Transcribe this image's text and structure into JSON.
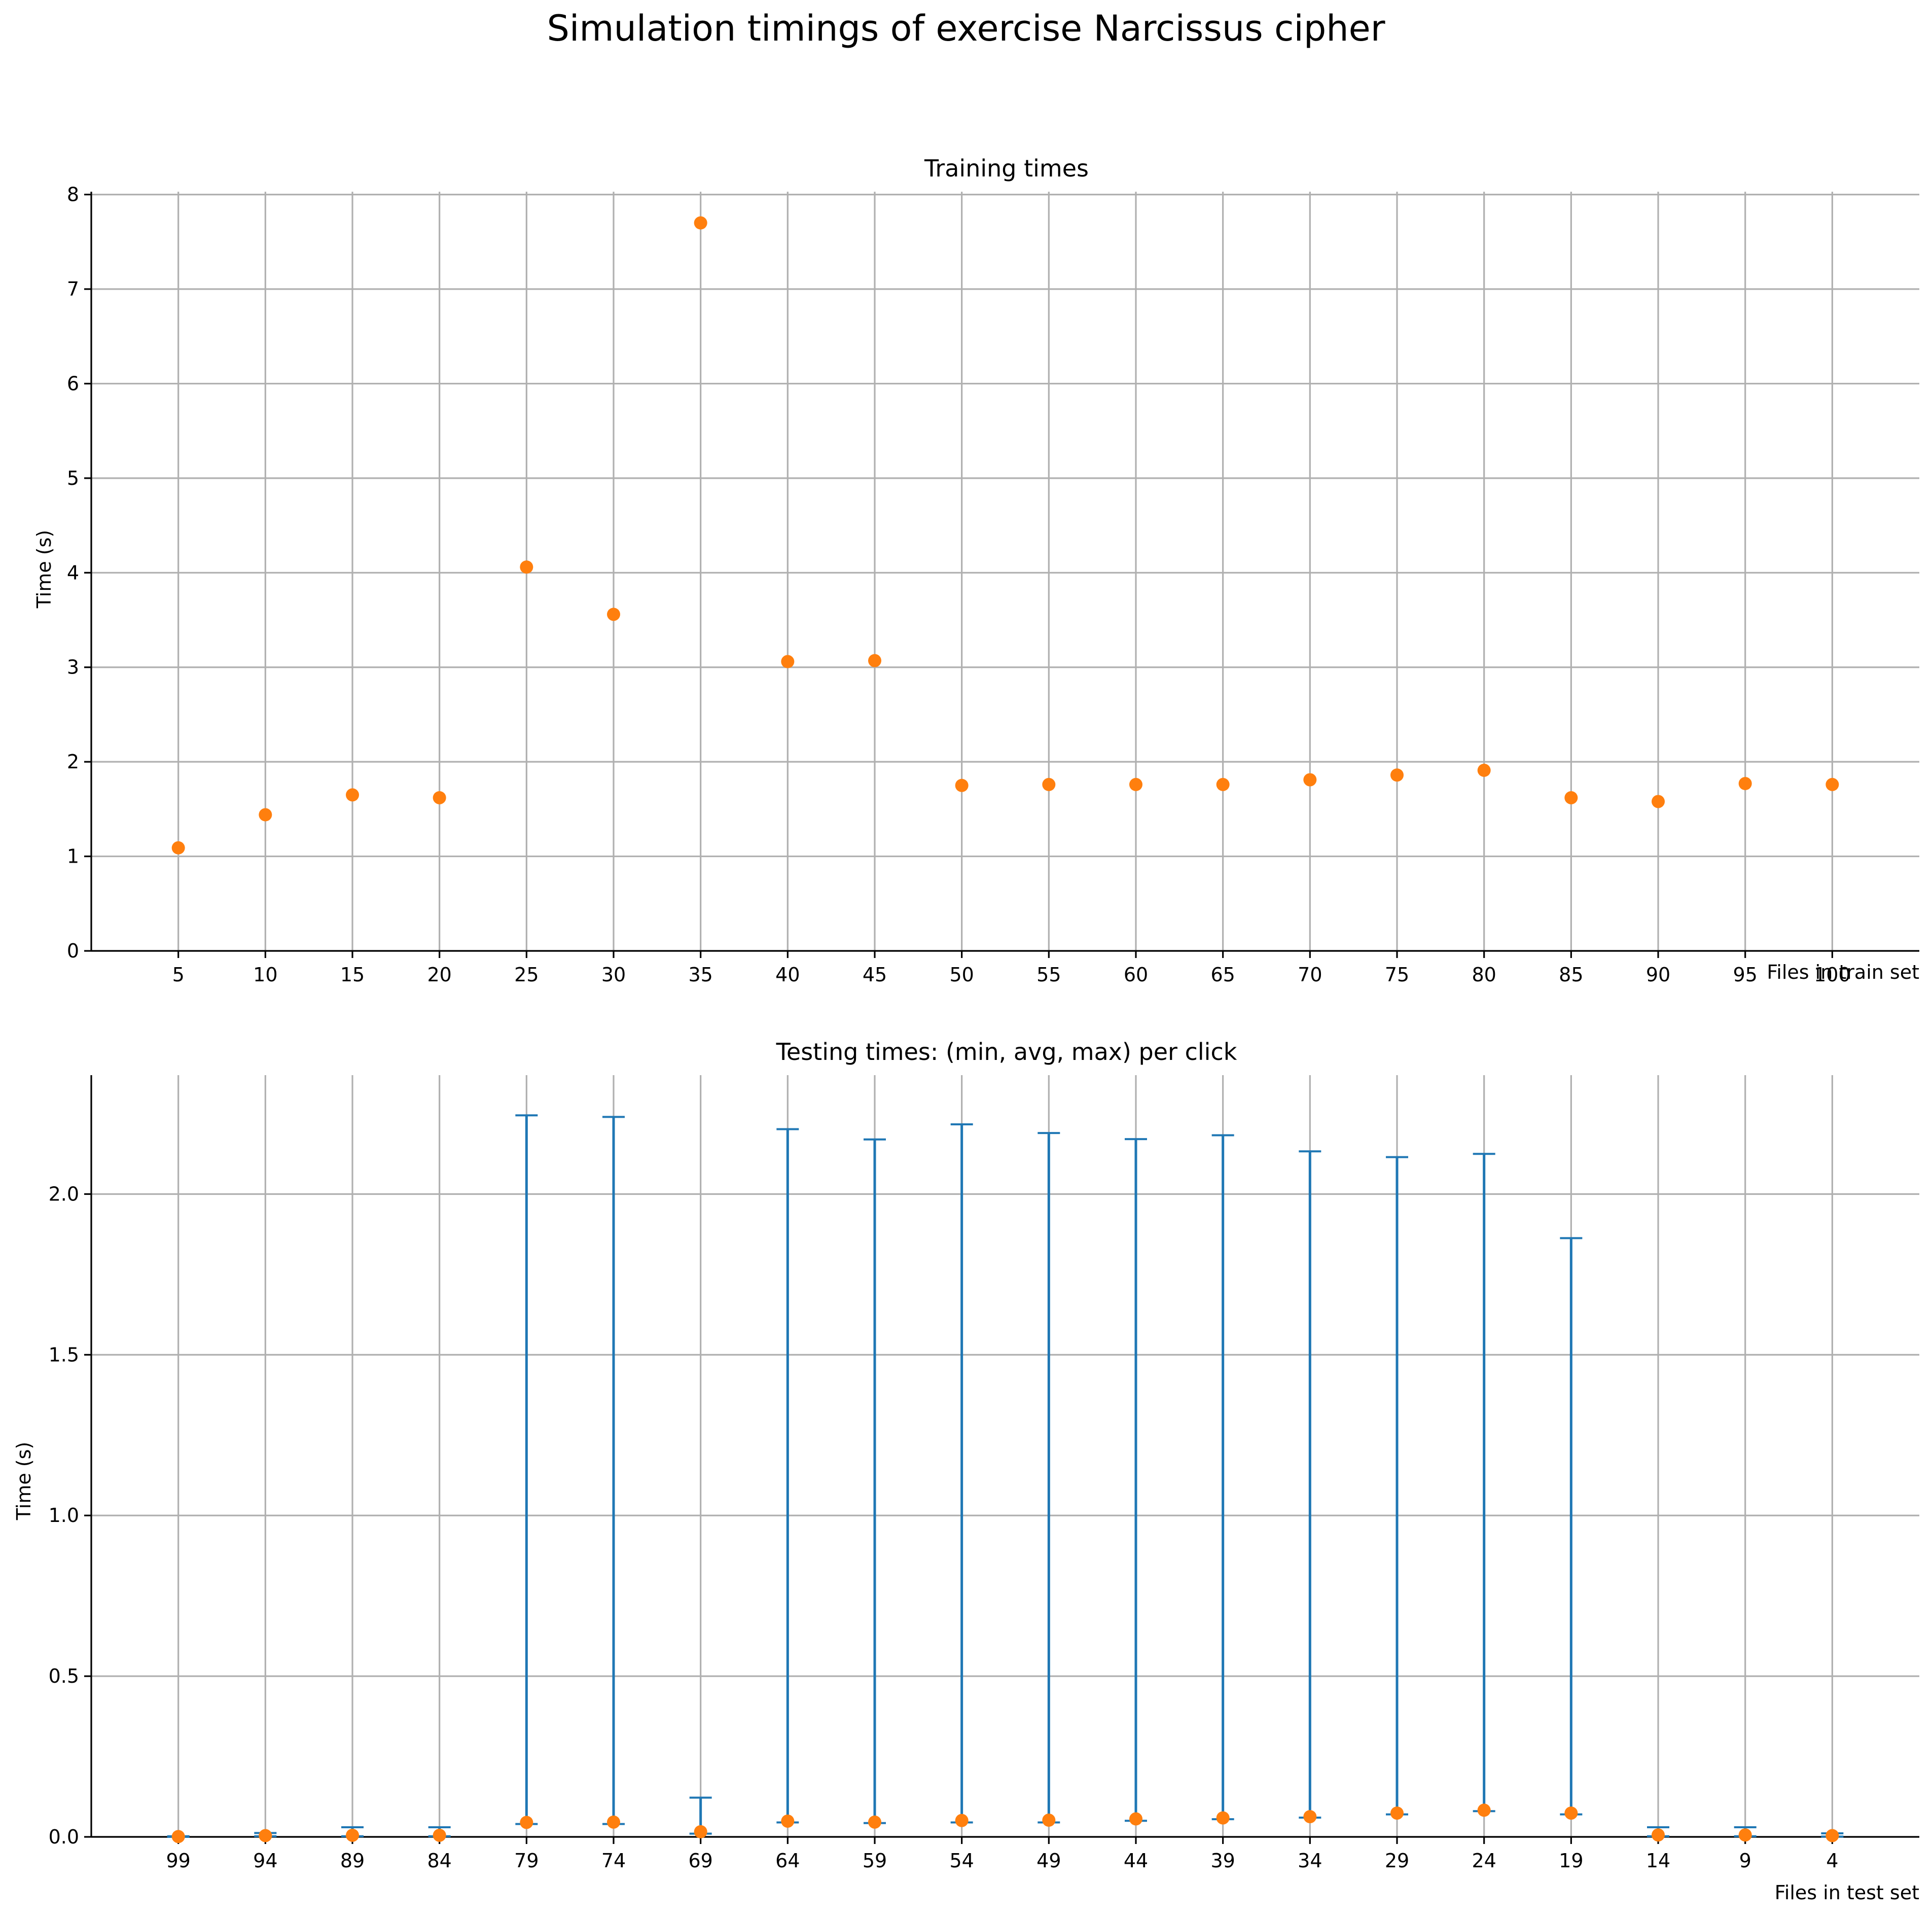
{
  "chart_data": [
    {
      "type": "scatter",
      "suptitle": "Simulation timings of exercise Narcissus cipher",
      "title": "Training times",
      "xlabel": "Files in train set",
      "ylabel": "Time (s)",
      "categories": [
        "5",
        "10",
        "15",
        "20",
        "25",
        "30",
        "35",
        "40",
        "45",
        "50",
        "55",
        "60",
        "65",
        "70",
        "75",
        "80",
        "85",
        "90",
        "95",
        "100"
      ],
      "values": [
        1.09,
        1.44,
        1.65,
        1.62,
        4.06,
        3.56,
        7.7,
        3.06,
        3.07,
        1.75,
        1.76,
        1.76,
        1.76,
        1.81,
        1.86,
        1.91,
        1.62,
        1.58,
        1.77,
        1.76
      ],
      "ylim": [
        0,
        8.03
      ],
      "yticks": [
        "0",
        "1",
        "2",
        "3",
        "4",
        "5",
        "6",
        "7",
        "8"
      ],
      "grid": true,
      "marker_color": "#ff7f0e"
    },
    {
      "type": "scatter",
      "title": "Testing times: (min, avg, max) per click",
      "xlabel": "Files in test set",
      "ylabel": "Time (s)",
      "categories": [
        "99",
        "94",
        "89",
        "84",
        "79",
        "74",
        "69",
        "64",
        "59",
        "54",
        "49",
        "44",
        "39",
        "34",
        "29",
        "24",
        "19",
        "14",
        "9",
        "4"
      ],
      "series": [
        {
          "name": "min",
          "values": [
            0.0,
            0.002,
            0.002,
            0.002,
            0.04,
            0.04,
            0.01,
            0.045,
            0.043,
            0.045,
            0.045,
            0.05,
            0.055,
            0.06,
            0.07,
            0.08,
            0.07,
            0.002,
            0.002,
            0.001
          ]
        },
        {
          "name": "avg",
          "values": [
            0.001,
            0.004,
            0.005,
            0.005,
            0.045,
            0.046,
            0.016,
            0.049,
            0.046,
            0.051,
            0.052,
            0.056,
            0.059,
            0.063,
            0.074,
            0.083,
            0.074,
            0.006,
            0.006,
            0.004
          ]
        },
        {
          "name": "max",
          "values": [
            0.002,
            0.012,
            0.03,
            0.03,
            2.245,
            2.24,
            0.122,
            2.202,
            2.17,
            2.217,
            2.19,
            2.171,
            2.183,
            2.133,
            2.115,
            2.125,
            1.863,
            0.03,
            0.03,
            0.011
          ]
        }
      ],
      "ylim": [
        0,
        2.37
      ],
      "yticks": [
        "0.0",
        "0.5",
        "1.0",
        "1.5",
        "2.0"
      ],
      "grid": true,
      "marker_color": "#ff7f0e",
      "errorbar_color": "#1f77b4"
    }
  ]
}
